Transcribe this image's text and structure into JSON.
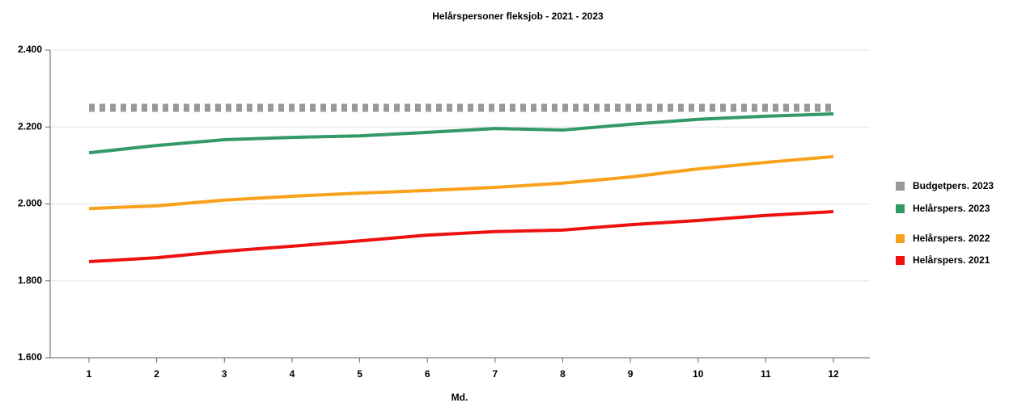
{
  "chart_data": {
    "type": "line",
    "title": "Helårspersoner fleksjob - 2021 - 2023",
    "x_label": "Md.",
    "categories": [
      "1",
      "2",
      "3",
      "4",
      "5",
      "6",
      "7",
      "8",
      "9",
      "10",
      "11",
      "12"
    ],
    "series": [
      {
        "name": "Budgetpers. 2023",
        "color": "#999999",
        "dashed": true,
        "values": [
          2250,
          2250,
          2250,
          2250,
          2250,
          2250,
          2250,
          2250,
          2250,
          2250,
          2250,
          2250
        ]
      },
      {
        "name": "Helårspers. 2023",
        "color": "#339966",
        "values": [
          2133,
          2152,
          2167,
          2173,
          2177,
          2186,
          2196,
          2192,
          2207,
          2220,
          2228,
          2234
        ]
      },
      {
        "name": "Helårspers. 2022",
        "color": "#f9a11b",
        "values": [
          1988,
          1995,
          2010,
          2020,
          2028,
          2035,
          2043,
          2054,
          2070,
          2091,
          2108,
          2123
        ]
      },
      {
        "name": "Helårspers. 2021",
        "color": "#ee1111",
        "values": [
          1850,
          1860,
          1877,
          1890,
          1904,
          1919,
          1928,
          1932,
          1946,
          1957,
          1970,
          1980
        ]
      }
    ],
    "ylim": [
      1600,
      2400
    ],
    "yticks": [
      {
        "value": 1600,
        "label": "1.600"
      },
      {
        "value": 1800,
        "label": "1.800"
      },
      {
        "value": 2000,
        "label": "2.000"
      },
      {
        "value": 2200,
        "label": "2.200"
      },
      {
        "value": 2400,
        "label": "2.400"
      }
    ],
    "grid": true,
    "legend": "right"
  }
}
